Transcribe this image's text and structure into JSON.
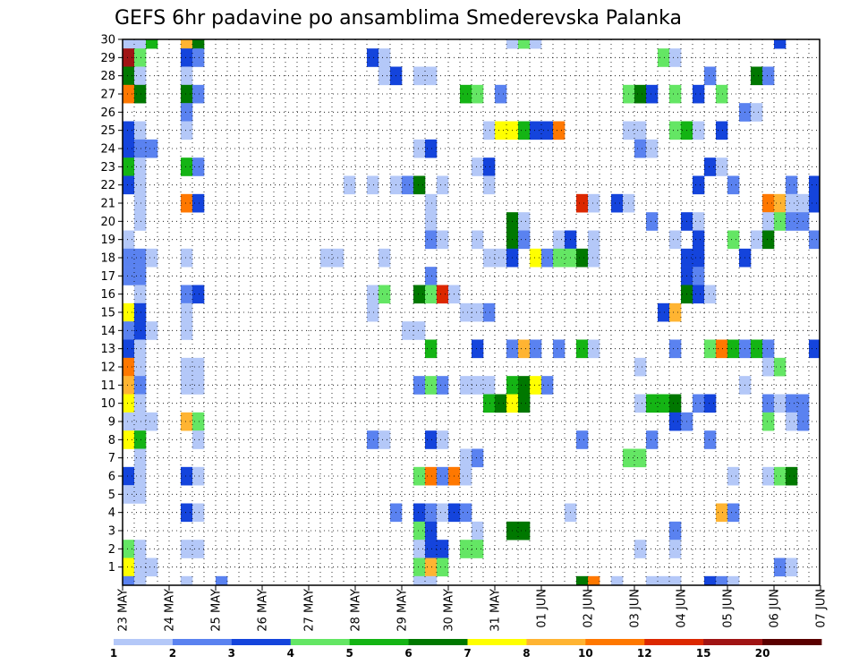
{
  "chart_data": {
    "type": "heatmap",
    "title": "GEFS 6hr padavine po ansamblima Smederevska Palanka",
    "xlabel": "",
    "ylabel": "",
    "x_ticks": [
      "23 MAY",
      "24 MAY",
      "25 MAY",
      "26 MAY",
      "27 MAY",
      "28 MAY",
      "29 MAY",
      "30 MAY",
      "31 MAY",
      "01 JUN",
      "02 JUN",
      "03 JUN",
      "04 JUN",
      "05 JUN",
      "06 JUN",
      "07 JUN"
    ],
    "y_ticks": [
      "1",
      "2",
      "3",
      "4",
      "5",
      "6",
      "7",
      "8",
      "9",
      "10",
      "11",
      "12",
      "13",
      "14",
      "15",
      "16",
      "17",
      "18",
      "19",
      "20",
      "21",
      "22",
      "23",
      "24",
      "25",
      "26",
      "27",
      "28",
      "29",
      "30"
    ],
    "x_step_label": "6hr",
    "grid": true,
    "legend": {
      "position": "bottom",
      "labels": [
        "1",
        "2",
        "3",
        "4",
        "5",
        "6",
        "7",
        "8",
        "10",
        "12",
        "15",
        "20"
      ],
      "colors": [
        "#b4c8f8",
        "#5a82f0",
        "#1444dc",
        "#64e664",
        "#14b414",
        "#007800",
        "#ffff00",
        "#ffb432",
        "#ff7800",
        "#dc2800",
        "#a01414",
        "#5a0000"
      ]
    },
    "cells_note": "member, step(6h from 23 MAY 00Z), class(1-12)",
    "cells": [
      [
        30,
        0,
        1
      ],
      [
        30,
        1,
        1
      ],
      [
        30,
        2,
        5
      ],
      [
        30,
        5,
        8
      ],
      [
        30,
        6,
        6
      ],
      [
        30,
        33,
        1
      ],
      [
        30,
        34,
        4
      ],
      [
        30,
        35,
        1
      ],
      [
        30,
        56,
        3
      ],
      [
        30,
        60,
        1
      ],
      [
        29,
        0,
        11
      ],
      [
        29,
        1,
        4
      ],
      [
        29,
        5,
        3
      ],
      [
        29,
        6,
        2
      ],
      [
        29,
        21,
        3
      ],
      [
        29,
        22,
        1
      ],
      [
        29,
        46,
        4
      ],
      [
        29,
        47,
        1
      ],
      [
        28,
        0,
        6
      ],
      [
        28,
        1,
        1
      ],
      [
        28,
        5,
        1
      ],
      [
        28,
        22,
        1
      ],
      [
        28,
        23,
        3
      ],
      [
        28,
        25,
        1
      ],
      [
        28,
        26,
        1
      ],
      [
        28,
        50,
        2
      ],
      [
        28,
        54,
        6
      ],
      [
        28,
        55,
        2
      ],
      [
        27,
        0,
        9
      ],
      [
        27,
        1,
        6
      ],
      [
        27,
        5,
        6
      ],
      [
        27,
        6,
        2
      ],
      [
        27,
        29,
        5
      ],
      [
        27,
        30,
        4
      ],
      [
        27,
        32,
        2
      ],
      [
        27,
        43,
        4
      ],
      [
        27,
        44,
        6
      ],
      [
        27,
        45,
        3
      ],
      [
        27,
        47,
        4
      ],
      [
        27,
        49,
        3
      ],
      [
        27,
        51,
        4
      ],
      [
        26,
        5,
        2
      ],
      [
        26,
        53,
        2
      ],
      [
        26,
        54,
        1
      ],
      [
        25,
        0,
        3
      ],
      [
        25,
        1,
        1
      ],
      [
        25,
        5,
        1
      ],
      [
        25,
        31,
        1
      ],
      [
        25,
        32,
        7
      ],
      [
        25,
        33,
        7
      ],
      [
        25,
        34,
        5
      ],
      [
        25,
        35,
        3
      ],
      [
        25,
        36,
        3
      ],
      [
        25,
        37,
        9
      ],
      [
        25,
        43,
        1
      ],
      [
        25,
        44,
        1
      ],
      [
        25,
        47,
        4
      ],
      [
        25,
        48,
        5
      ],
      [
        25,
        49,
        1
      ],
      [
        25,
        51,
        3
      ],
      [
        24,
        0,
        3
      ],
      [
        24,
        1,
        2
      ],
      [
        24,
        2,
        2
      ],
      [
        24,
        25,
        1
      ],
      [
        24,
        26,
        3
      ],
      [
        24,
        44,
        2
      ],
      [
        24,
        45,
        1
      ],
      [
        23,
        0,
        5
      ],
      [
        23,
        1,
        1
      ],
      [
        23,
        5,
        5
      ],
      [
        23,
        6,
        2
      ],
      [
        23,
        30,
        1
      ],
      [
        23,
        31,
        3
      ],
      [
        23,
        50,
        3
      ],
      [
        23,
        51,
        1
      ],
      [
        22,
        0,
        3
      ],
      [
        22,
        1,
        1
      ],
      [
        22,
        19,
        1
      ],
      [
        22,
        21,
        1
      ],
      [
        22,
        23,
        1
      ],
      [
        22,
        24,
        2
      ],
      [
        22,
        25,
        6
      ],
      [
        22,
        27,
        1
      ],
      [
        22,
        31,
        1
      ],
      [
        22,
        49,
        3
      ],
      [
        22,
        52,
        2
      ],
      [
        22,
        57,
        2
      ],
      [
        22,
        59,
        3
      ],
      [
        22,
        60,
        1
      ],
      [
        21,
        1,
        1
      ],
      [
        21,
        5,
        9
      ],
      [
        21,
        6,
        3
      ],
      [
        21,
        26,
        1
      ],
      [
        21,
        39,
        10
      ],
      [
        21,
        40,
        1
      ],
      [
        21,
        42,
        3
      ],
      [
        21,
        43,
        1
      ],
      [
        21,
        55,
        9
      ],
      [
        21,
        56,
        8
      ],
      [
        21,
        57,
        1
      ],
      [
        21,
        58,
        1
      ],
      [
        21,
        59,
        3
      ],
      [
        20,
        1,
        1
      ],
      [
        20,
        26,
        1
      ],
      [
        20,
        33,
        6
      ],
      [
        20,
        34,
        1
      ],
      [
        20,
        45,
        2
      ],
      [
        20,
        48,
        3
      ],
      [
        20,
        49,
        1
      ],
      [
        20,
        55,
        1
      ],
      [
        20,
        56,
        4
      ],
      [
        20,
        57,
        2
      ],
      [
        20,
        58,
        2
      ],
      [
        19,
        0,
        1
      ],
      [
        19,
        26,
        2
      ],
      [
        19,
        27,
        1
      ],
      [
        19,
        30,
        1
      ],
      [
        19,
        33,
        6
      ],
      [
        19,
        34,
        2
      ],
      [
        19,
        37,
        1
      ],
      [
        19,
        38,
        3
      ],
      [
        19,
        40,
        1
      ],
      [
        19,
        47,
        1
      ],
      [
        19,
        49,
        3
      ],
      [
        19,
        52,
        4
      ],
      [
        19,
        54,
        1
      ],
      [
        19,
        55,
        6
      ],
      [
        19,
        59,
        2
      ],
      [
        18,
        0,
        2
      ],
      [
        18,
        1,
        2
      ],
      [
        18,
        2,
        1
      ],
      [
        18,
        5,
        1
      ],
      [
        18,
        17,
        1
      ],
      [
        18,
        18,
        1
      ],
      [
        18,
        22,
        1
      ],
      [
        18,
        31,
        1
      ],
      [
        18,
        32,
        1
      ],
      [
        18,
        33,
        3
      ],
      [
        18,
        35,
        7
      ],
      [
        18,
        36,
        2
      ],
      [
        18,
        37,
        4
      ],
      [
        18,
        38,
        4
      ],
      [
        18,
        39,
        6
      ],
      [
        18,
        40,
        1
      ],
      [
        18,
        48,
        3
      ],
      [
        18,
        49,
        3
      ],
      [
        18,
        53,
        3
      ],
      [
        17,
        0,
        2
      ],
      [
        17,
        1,
        2
      ],
      [
        17,
        26,
        2
      ],
      [
        17,
        48,
        3
      ],
      [
        17,
        49,
        2
      ],
      [
        16,
        1,
        1
      ],
      [
        16,
        5,
        2
      ],
      [
        16,
        6,
        3
      ],
      [
        16,
        21,
        1
      ],
      [
        16,
        22,
        4
      ],
      [
        16,
        25,
        6
      ],
      [
        16,
        26,
        4
      ],
      [
        16,
        27,
        10
      ],
      [
        16,
        28,
        1
      ],
      [
        16,
        48,
        6
      ],
      [
        16,
        49,
        3
      ],
      [
        16,
        50,
        1
      ],
      [
        15,
        0,
        7
      ],
      [
        15,
        1,
        3
      ],
      [
        15,
        5,
        1
      ],
      [
        15,
        21,
        1
      ],
      [
        15,
        29,
        1
      ],
      [
        15,
        30,
        1
      ],
      [
        15,
        31,
        2
      ],
      [
        15,
        46,
        3
      ],
      [
        15,
        47,
        8
      ],
      [
        14,
        0,
        2
      ],
      [
        14,
        1,
        3
      ],
      [
        14,
        2,
        1
      ],
      [
        14,
        5,
        1
      ],
      [
        14,
        24,
        1
      ],
      [
        14,
        25,
        1
      ],
      [
        13,
        0,
        3
      ],
      [
        13,
        1,
        1
      ],
      [
        13,
        26,
        5
      ],
      [
        13,
        30,
        3
      ],
      [
        13,
        33,
        2
      ],
      [
        13,
        34,
        8
      ],
      [
        13,
        35,
        2
      ],
      [
        13,
        37,
        2
      ],
      [
        13,
        39,
        5
      ],
      [
        13,
        40,
        1
      ],
      [
        13,
        47,
        2
      ],
      [
        13,
        50,
        4
      ],
      [
        13,
        51,
        9
      ],
      [
        13,
        52,
        5
      ],
      [
        13,
        53,
        2
      ],
      [
        13,
        54,
        5
      ],
      [
        13,
        55,
        2
      ],
      [
        13,
        59,
        3
      ],
      [
        13,
        60,
        2
      ],
      [
        12,
        0,
        9
      ],
      [
        12,
        1,
        1
      ],
      [
        12,
        5,
        1
      ],
      [
        12,
        6,
        1
      ],
      [
        12,
        44,
        1
      ],
      [
        12,
        55,
        1
      ],
      [
        12,
        56,
        4
      ],
      [
        11,
        0,
        8
      ],
      [
        11,
        1,
        2
      ],
      [
        11,
        5,
        1
      ],
      [
        11,
        6,
        1
      ],
      [
        11,
        25,
        2
      ],
      [
        11,
        26,
        4
      ],
      [
        11,
        27,
        2
      ],
      [
        11,
        29,
        1
      ],
      [
        11,
        30,
        1
      ],
      [
        11,
        31,
        1
      ],
      [
        11,
        33,
        5
      ],
      [
        11,
        34,
        6
      ],
      [
        11,
        35,
        7
      ],
      [
        11,
        36,
        2
      ],
      [
        11,
        53,
        1
      ],
      [
        10,
        0,
        7
      ],
      [
        10,
        1,
        1
      ],
      [
        10,
        31,
        5
      ],
      [
        10,
        32,
        6
      ],
      [
        10,
        33,
        7
      ],
      [
        10,
        34,
        6
      ],
      [
        10,
        44,
        1
      ],
      [
        10,
        45,
        5
      ],
      [
        10,
        46,
        5
      ],
      [
        10,
        47,
        6
      ],
      [
        10,
        49,
        2
      ],
      [
        10,
        50,
        3
      ],
      [
        10,
        55,
        2
      ],
      [
        10,
        56,
        1
      ],
      [
        10,
        57,
        2
      ],
      [
        10,
        58,
        2
      ],
      [
        9,
        0,
        1
      ],
      [
        9,
        1,
        1
      ],
      [
        9,
        2,
        1
      ],
      [
        9,
        5,
        8
      ],
      [
        9,
        6,
        4
      ],
      [
        9,
        47,
        3
      ],
      [
        9,
        48,
        2
      ],
      [
        9,
        55,
        4
      ],
      [
        9,
        57,
        1
      ],
      [
        9,
        58,
        2
      ],
      [
        8,
        0,
        7
      ],
      [
        8,
        1,
        5
      ],
      [
        8,
        6,
        1
      ],
      [
        8,
        21,
        2
      ],
      [
        8,
        22,
        1
      ],
      [
        8,
        26,
        3
      ],
      [
        8,
        27,
        1
      ],
      [
        8,
        39,
        2
      ],
      [
        8,
        45,
        2
      ],
      [
        8,
        50,
        2
      ],
      [
        7,
        1,
        1
      ],
      [
        7,
        29,
        1
      ],
      [
        7,
        30,
        2
      ],
      [
        7,
        43,
        4
      ],
      [
        7,
        44,
        4
      ],
      [
        7,
        60,
        1
      ],
      [
        6,
        0,
        3
      ],
      [
        6,
        1,
        1
      ],
      [
        6,
        5,
        3
      ],
      [
        6,
        6,
        1
      ],
      [
        6,
        25,
        4
      ],
      [
        6,
        26,
        9
      ],
      [
        6,
        27,
        2
      ],
      [
        6,
        28,
        9
      ],
      [
        6,
        29,
        1
      ],
      [
        6,
        52,
        1
      ],
      [
        6,
        55,
        1
      ],
      [
        6,
        56,
        4
      ],
      [
        6,
        57,
        6
      ],
      [
        5,
        0,
        1
      ],
      [
        5,
        1,
        1
      ],
      [
        4,
        5,
        3
      ],
      [
        4,
        6,
        1
      ],
      [
        4,
        23,
        2
      ],
      [
        4,
        25,
        3
      ],
      [
        4,
        26,
        2
      ],
      [
        4,
        27,
        1
      ],
      [
        4,
        28,
        3
      ],
      [
        4,
        29,
        2
      ],
      [
        4,
        38,
        1
      ],
      [
        4,
        51,
        8
      ],
      [
        4,
        52,
        2
      ],
      [
        3,
        25,
        4
      ],
      [
        3,
        26,
        3
      ],
      [
        3,
        30,
        1
      ],
      [
        3,
        33,
        6
      ],
      [
        3,
        34,
        6
      ],
      [
        3,
        47,
        2
      ],
      [
        3,
        60,
        3
      ],
      [
        2,
        0,
        4
      ],
      [
        2,
        1,
        1
      ],
      [
        2,
        5,
        1
      ],
      [
        2,
        6,
        1
      ],
      [
        2,
        25,
        1
      ],
      [
        2,
        26,
        3
      ],
      [
        2,
        27,
        3
      ],
      [
        2,
        29,
        4
      ],
      [
        2,
        30,
        4
      ],
      [
        2,
        44,
        1
      ],
      [
        2,
        47,
        1
      ],
      [
        1,
        0,
        7
      ],
      [
        1,
        1,
        1
      ],
      [
        1,
        2,
        1
      ],
      [
        1,
        25,
        4
      ],
      [
        1,
        26,
        8
      ],
      [
        1,
        27,
        4
      ],
      [
        1,
        56,
        2
      ],
      [
        1,
        57,
        1
      ],
      [
        0,
        0,
        2
      ],
      [
        0,
        1,
        1
      ],
      [
        0,
        5,
        1
      ],
      [
        0,
        8,
        2
      ],
      [
        0,
        25,
        1
      ],
      [
        0,
        26,
        1
      ],
      [
        0,
        39,
        6
      ],
      [
        0,
        40,
        9
      ],
      [
        0,
        42,
        1
      ],
      [
        0,
        45,
        1
      ],
      [
        0,
        46,
        1
      ],
      [
        0,
        47,
        1
      ],
      [
        0,
        50,
        3
      ],
      [
        0,
        51,
        2
      ],
      [
        0,
        52,
        1
      ]
    ]
  }
}
